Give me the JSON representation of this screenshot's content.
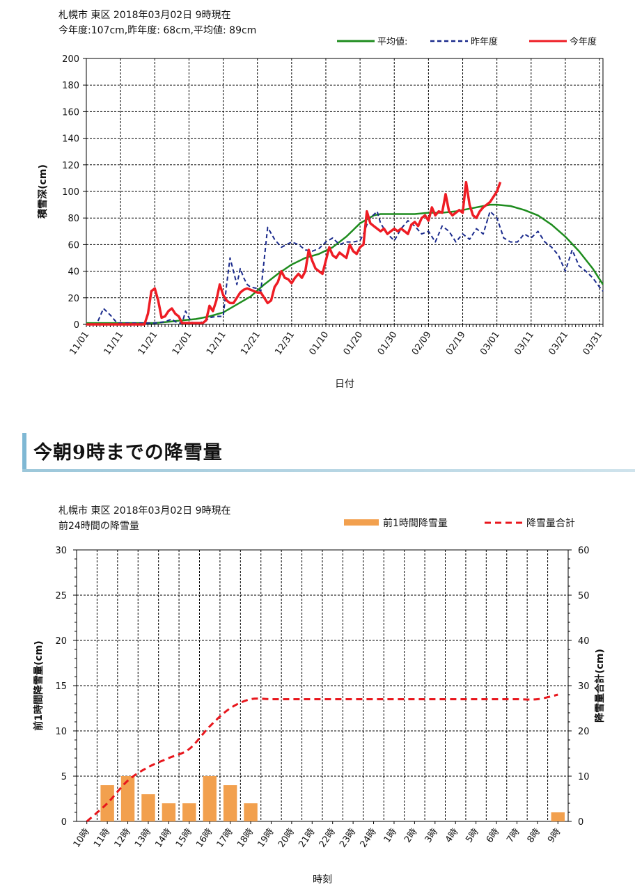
{
  "charts": [
    {
      "type": "line",
      "title": "札幌市 東区 2018年03月02日 9時現在",
      "subtitle": "今年度:107cm,昨年度: 68cm,平均値: 89cm",
      "xlabel": "日付",
      "ylabel": "積雪深(cm)",
      "ylim": [
        0,
        200
      ],
      "yticks": [
        0,
        20,
        40,
        60,
        80,
        100,
        120,
        140,
        160,
        180,
        200
      ],
      "xlim": [
        0,
        151
      ],
      "xticks": [
        {
          "day": 0,
          "label": "11/01"
        },
        {
          "day": 10,
          "label": "11/11"
        },
        {
          "day": 20,
          "label": "11/21"
        },
        {
          "day": 30,
          "label": "12/01"
        },
        {
          "day": 40,
          "label": "12/11"
        },
        {
          "day": 50,
          "label": "12/21"
        },
        {
          "day": 60,
          "label": "12/31"
        },
        {
          "day": 70,
          "label": "01/10"
        },
        {
          "day": 80,
          "label": "01/20"
        },
        {
          "day": 90,
          "label": "01/30"
        },
        {
          "day": 100,
          "label": "02/09"
        },
        {
          "day": 110,
          "label": "02/19"
        },
        {
          "day": 120,
          "label": "03/01"
        },
        {
          "day": 130,
          "label": "03/11"
        },
        {
          "day": 140,
          "label": "03/21"
        },
        {
          "day": 150,
          "label": "03/31"
        }
      ],
      "legend": [
        {
          "name": "平均値:",
          "color": "#1e8c1e",
          "style": "solid"
        },
        {
          "name": "昨年度",
          "color": "#1a2a8c",
          "style": "dashed"
        },
        {
          "name": "今年度",
          "color": "#ee1c24",
          "style": "solid"
        }
      ],
      "series": [
        {
          "name": "平均値",
          "color": "#1e8c1e",
          "dash": false,
          "width": 2.5,
          "x": [
            0,
            4,
            10,
            16,
            20,
            24,
            28,
            32,
            36,
            40,
            44,
            48,
            52,
            56,
            60,
            64,
            68,
            72,
            76,
            80,
            84,
            86,
            88,
            92,
            96,
            100,
            104,
            108,
            112,
            116,
            118,
            120,
            124,
            128,
            132,
            136,
            140,
            144,
            148,
            151
          ],
          "y": [
            1,
            1,
            1,
            1,
            1,
            2,
            3,
            4,
            6,
            9,
            15,
            21,
            30,
            38,
            45,
            50,
            53,
            58,
            66,
            76,
            82,
            83,
            83,
            83,
            83,
            84,
            84,
            85,
            87,
            89,
            90,
            90,
            89,
            86,
            82,
            75,
            66,
            55,
            42,
            30
          ]
        },
        {
          "name": "昨年度",
          "color": "#1a2a8c",
          "dash": true,
          "width": 2,
          "x": [
            0,
            3,
            5,
            7,
            9,
            11,
            20,
            23,
            25,
            26,
            27,
            28,
            29,
            30,
            31,
            33,
            35,
            36,
            38,
            40,
            41,
            42,
            43,
            44,
            45,
            46,
            47,
            48,
            50,
            51,
            53,
            55,
            57,
            60,
            62,
            64,
            66,
            68,
            70,
            72,
            74,
            76,
            78,
            80,
            81,
            82,
            83,
            85,
            86,
            88,
            90,
            92,
            94,
            96,
            98,
            100,
            102,
            104,
            106,
            108,
            110,
            112,
            114,
            116,
            118,
            120,
            122,
            124,
            126,
            128,
            130,
            132,
            134,
            136,
            138,
            140,
            142,
            144,
            146,
            148,
            150,
            151
          ],
          "y": [
            0,
            0,
            12,
            7,
            1,
            1,
            1,
            2,
            4,
            2,
            1,
            1,
            10,
            5,
            1,
            1,
            3,
            5,
            6,
            6,
            30,
            50,
            40,
            30,
            42,
            35,
            30,
            28,
            27,
            25,
            73,
            64,
            58,
            62,
            60,
            56,
            55,
            57,
            62,
            65,
            60,
            62,
            62,
            63,
            68,
            75,
            80,
            85,
            76,
            68,
            63,
            72,
            78,
            74,
            68,
            70,
            62,
            74,
            70,
            62,
            68,
            64,
            72,
            68,
            85,
            80,
            65,
            62,
            62,
            68,
            65,
            70,
            62,
            58,
            52,
            40,
            56,
            44,
            40,
            35,
            28,
            25
          ]
        },
        {
          "name": "今年度",
          "color": "#ee1c24",
          "dash": false,
          "width": 3.5,
          "x": [
            0,
            17,
            18,
            19,
            20,
            21,
            22,
            23,
            24,
            25,
            26,
            27,
            28,
            29,
            30,
            31,
            32,
            33,
            34,
            35,
            36,
            37,
            38,
            39,
            40,
            41,
            42,
            43,
            44,
            45,
            46,
            47,
            48,
            49,
            50,
            51,
            52,
            53,
            54,
            55,
            56,
            57,
            58,
            59,
            60,
            61,
            62,
            63,
            64,
            65,
            66,
            67,
            68,
            69,
            70,
            71,
            72,
            73,
            74,
            75,
            76,
            77,
            78,
            79,
            80,
            81,
            82,
            83,
            84,
            85,
            86,
            87,
            88,
            89,
            90,
            91,
            92,
            93,
            94,
            95,
            96,
            97,
            98,
            99,
            100,
            101,
            102,
            103,
            104,
            105,
            106,
            107,
            108,
            109,
            110,
            111,
            112,
            113,
            114,
            115,
            116,
            117,
            118,
            119,
            120,
            121
          ],
          "y": [
            0,
            0,
            8,
            25,
            27,
            18,
            5,
            6,
            10,
            12,
            8,
            6,
            1,
            1,
            1,
            1,
            1,
            1,
            1,
            3,
            14,
            10,
            18,
            30,
            22,
            18,
            16,
            16,
            20,
            24,
            26,
            27,
            26,
            25,
            24,
            24,
            20,
            16,
            18,
            28,
            32,
            40,
            35,
            34,
            31,
            35,
            38,
            35,
            40,
            56,
            48,
            42,
            40,
            38,
            48,
            58,
            52,
            50,
            54,
            52,
            50,
            60,
            55,
            53,
            58,
            60,
            85,
            76,
            74,
            72,
            70,
            72,
            68,
            70,
            72,
            70,
            72,
            70,
            68,
            75,
            77,
            74,
            80,
            82,
            78,
            88,
            82,
            85,
            84,
            98,
            85,
            82,
            84,
            86,
            84,
            107,
            90,
            82,
            80,
            85,
            88,
            90,
            92,
            96,
            100,
            107
          ]
        }
      ]
    },
    {
      "type": "bar",
      "title": "札幌市 東区 2018年03月02日 9時現在",
      "subtitle": "前24時間の降雪量",
      "xlabel": "時刻",
      "ylabel_left": "前1時間降雪量(cm)",
      "ylabel_right": "降雪量合計(cm)",
      "ylim_left": [
        0,
        30
      ],
      "ylim_right": [
        0,
        60
      ],
      "yticks_left": [
        0,
        5,
        10,
        15,
        20,
        25,
        30
      ],
      "yticks_right": [
        0,
        10,
        20,
        30,
        40,
        50,
        60
      ],
      "categories": [
        "10時",
        "11時",
        "12時",
        "13時",
        "14時",
        "15時",
        "16時",
        "17時",
        "18時",
        "19時",
        "20時",
        "21時",
        "22時",
        "23時",
        "24時",
        "1時",
        "2時",
        "3時",
        "4時",
        "5時",
        "6時",
        "7時",
        "8時",
        "9時"
      ],
      "legend": [
        {
          "name": "前1時間降雪量",
          "color": "#f2a04e",
          "style": "bar"
        },
        {
          "name": "降雪量合計",
          "color": "#e8161c",
          "style": "dashed"
        }
      ],
      "series": [
        {
          "name": "前1時間降雪量",
          "axis": "left",
          "color": "#f2a04e",
          "values": [
            null,
            4,
            5,
            3,
            2,
            2,
            5,
            4,
            2,
            0,
            0,
            0,
            0,
            0,
            0,
            0,
            0,
            0,
            0,
            0,
            0,
            0,
            0,
            1
          ]
        },
        {
          "name": "降雪量合計",
          "axis": "right",
          "color": "#e8161c",
          "values": [
            0,
            4,
            9,
            12,
            14,
            16,
            21,
            25,
            27,
            27,
            27,
            27,
            27,
            27,
            27,
            27,
            27,
            27,
            27,
            27,
            27,
            27,
            27,
            28
          ]
        }
      ]
    }
  ],
  "section": {
    "heading": "今朝9時までの降雪量"
  }
}
